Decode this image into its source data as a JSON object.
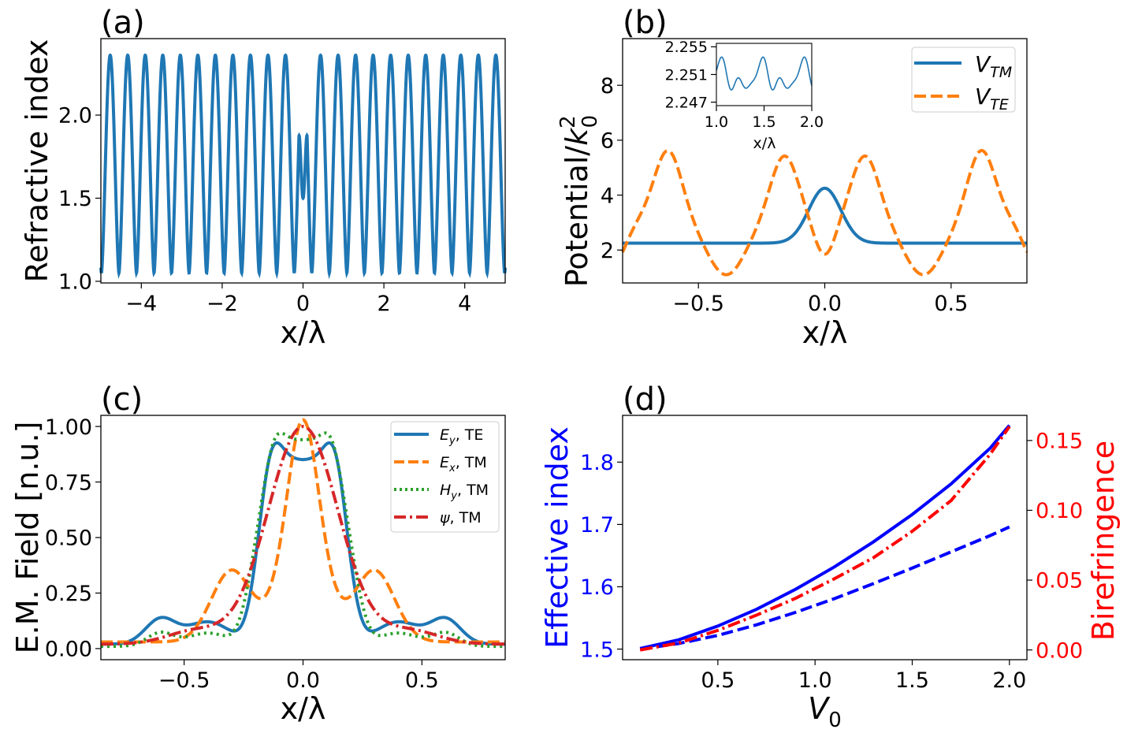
{
  "colors": {
    "c0": "#1f77b4",
    "c1": "#ff7f0e",
    "c2": "#2ca02c",
    "c3": "#d62728",
    "blue": "#0000ff",
    "red": "#ff0000"
  },
  "chart_data": [
    {
      "id": "a",
      "panel_label": "(a)",
      "type": "line",
      "xlabel": "x/λ",
      "ylabel": "Refractive index",
      "xlim": [
        -5,
        5
      ],
      "ylim": [
        0.99,
        2.46
      ],
      "xticks": [
        -4,
        -2,
        0,
        2,
        4
      ],
      "xtick_labels": [
        "−4",
        "−2",
        "0",
        "2",
        "4"
      ],
      "yticks": [
        1.0,
        1.5,
        2.0
      ],
      "ytick_labels": [
        "1.0",
        "1.5",
        "2.0"
      ],
      "series": [
        {
          "name": "refractive index",
          "function": "periodic index profile, period ≈ 0.434λ, min 1.05, max 2.36, defect dip to 1.5 at x=0",
          "color": "#1f77b4"
        }
      ]
    },
    {
      "id": "b",
      "panel_label": "(b)",
      "type": "line",
      "xlabel": "x/λ",
      "ylabel": "Potential/k₀²",
      "xlim": [
        -0.8,
        0.8
      ],
      "ylim": [
        0.8,
        9.7
      ],
      "xticks": [
        -0.5,
        0.0,
        0.5
      ],
      "xtick_labels": [
        "−0.5",
        "0.0",
        "0.5"
      ],
      "yticks": [
        2,
        4,
        6,
        8
      ],
      "ytick_labels": [
        "2",
        "4",
        "6",
        "8"
      ],
      "legend": "top-right",
      "series": [
        {
          "name": "V_TM",
          "label_main": "V",
          "label_sub": "TM",
          "style": "solid",
          "color": "#1f77b4",
          "baseline": 2.25,
          "peak": [
            0.0,
            4.25
          ]
        },
        {
          "name": "V_TE",
          "label_main": "V",
          "label_sub": "TE",
          "style": "dashed",
          "color": "#ff7f0e",
          "peaks": [
            [
              -0.62,
              5.6
            ],
            [
              -0.16,
              5.65
            ],
            [
              0.16,
              5.65
            ],
            [
              0.62,
              5.6
            ]
          ],
          "minima": [
            [
              -0.39,
              1.1
            ],
            [
              0.0,
              2.25
            ],
            [
              0.39,
              1.1
            ]
          ]
        }
      ],
      "inset": {
        "xlabel": "x/λ",
        "xlim": [
          1.0,
          2.0
        ],
        "ylim": [
          2.2465,
          2.2555
        ],
        "xticks": [
          1.0,
          1.5,
          2.0
        ],
        "xtick_labels": [
          "1.0",
          "1.5",
          "2.0"
        ],
        "yticks": [
          2.247,
          2.251,
          2.255
        ],
        "ytick_labels": [
          "2.247",
          "2.251",
          "2.255"
        ]
      }
    },
    {
      "id": "c",
      "panel_label": "(c)",
      "type": "line",
      "xlabel": "x/λ",
      "ylabel": "E.M. Field [n.u.]",
      "xlim": [
        -0.85,
        0.85
      ],
      "ylim": [
        -0.05,
        1.05
      ],
      "xticks": [
        -0.5,
        0.0,
        0.5
      ],
      "xtick_labels": [
        "−0.5",
        "0.0",
        "0.5"
      ],
      "yticks": [
        0,
        0.25,
        0.5,
        0.75,
        1.0
      ],
      "ytick_labels": [
        "0.00",
        "0.25",
        "0.50",
        "0.75",
        "1.00"
      ],
      "legend": "top-right",
      "series": [
        {
          "name": "Ey, TE",
          "label_main": "E",
          "label_sub": "y",
          "label_rest": ", TE",
          "style": "solid",
          "color": "#1f77b4"
        },
        {
          "name": "Ex, TM",
          "label_main": "E",
          "label_sub": "x",
          "label_rest": ", TM",
          "style": "dashed",
          "color": "#ff7f0e"
        },
        {
          "name": "Hy, TM",
          "label_main": "H",
          "label_sub": "y",
          "label_rest": ", TM",
          "style": "dotted",
          "color": "#2ca02c"
        },
        {
          "name": "ψ, TM",
          "label_main": "ψ",
          "label_sub": "",
          "label_rest": ", TM",
          "style": "dashdot",
          "color": "#d62728"
        }
      ]
    },
    {
      "id": "d",
      "panel_label": "(d)",
      "type": "line",
      "xlabel": "V₀",
      "ylabel_left": "Effective index",
      "ylabel_right": "Birefringence",
      "xlim": [
        0.01,
        2.09
      ],
      "ylim_left": [
        1.483,
        1.875
      ],
      "ylim_right": [
        -0.007,
        0.168
      ],
      "xticks": [
        0.5,
        1.0,
        1.5,
        2.0
      ],
      "xtick_labels": [
        "0.5",
        "1.0",
        "1.5",
        "2.0"
      ],
      "yticks_left": [
        1.5,
        1.6,
        1.7,
        1.8
      ],
      "ytick_labels_left": [
        "1.5",
        "1.6",
        "1.7",
        "1.8"
      ],
      "yticks_right": [
        0.0,
        0.05,
        0.1,
        0.15
      ],
      "ytick_labels_right": [
        "0.00",
        "0.05",
        "0.10",
        "0.15"
      ],
      "x": [
        0.1,
        0.3,
        0.5,
        0.7,
        0.9,
        1.1,
        1.3,
        1.5,
        1.7,
        1.9,
        2.0
      ],
      "series": [
        {
          "name": "n_eff solid",
          "axis": "left",
          "style": "solid",
          "color": "#0000ff",
          "values": [
            1.501,
            1.515,
            1.537,
            1.564,
            1.596,
            1.632,
            1.672,
            1.716,
            1.765,
            1.822,
            1.859
          ]
        },
        {
          "name": "n_eff dashed",
          "axis": "left",
          "style": "dashed",
          "color": "#0000ff",
          "values": [
            1.5,
            1.509,
            1.522,
            1.539,
            1.559,
            1.581,
            1.605,
            1.63,
            1.656,
            1.682,
            1.696
          ]
        },
        {
          "name": "birefringence",
          "axis": "right",
          "style": "dashdot",
          "color": "#ff0000",
          "values": [
            0.0,
            0.005,
            0.014,
            0.025,
            0.037,
            0.051,
            0.066,
            0.085,
            0.107,
            0.14,
            0.16
          ]
        }
      ]
    }
  ]
}
